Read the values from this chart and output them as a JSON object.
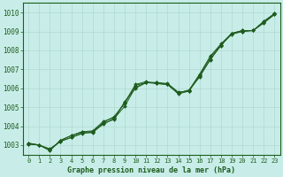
{
  "background_color": "#c8ede8",
  "grid_color": "#b0d8d0",
  "line_color": "#1e5c1e",
  "title": "Graphe pression niveau de la mer (hPa)",
  "xlim": [
    -0.5,
    23.5
  ],
  "ylim": [
    1002.5,
    1010.5
  ],
  "yticks": [
    1003,
    1004,
    1005,
    1006,
    1007,
    1008,
    1009,
    1010
  ],
  "xticks": [
    0,
    1,
    2,
    3,
    4,
    5,
    6,
    7,
    8,
    9,
    10,
    11,
    12,
    13,
    14,
    15,
    16,
    17,
    18,
    19,
    20,
    21,
    22,
    23
  ],
  "series": [
    [
      1003.1,
      1003.0,
      1002.8,
      1003.2,
      1003.4,
      1003.65,
      1003.65,
      1004.15,
      1004.35,
      1005.3,
      1006.0,
      1006.3,
      1006.3,
      1006.25,
      1005.8,
      1005.85,
      1006.65,
      1007.5,
      1008.3,
      1008.85,
      1009.0,
      1009.05,
      1009.5,
      1009.9
    ],
    [
      1003.1,
      1003.0,
      1002.75,
      1003.2,
      1003.4,
      1003.6,
      1003.7,
      1004.1,
      1004.4,
      1005.05,
      1006.05,
      1006.3,
      1006.3,
      1006.2,
      1005.75,
      1005.9,
      1006.6,
      1007.55,
      1008.25,
      1008.9,
      1009.0,
      1009.05,
      1009.45,
      1009.9
    ],
    [
      1003.05,
      1003.0,
      1002.75,
      1003.25,
      1003.5,
      1003.7,
      1003.7,
      1004.2,
      1004.5,
      1005.2,
      1006.15,
      1006.3,
      1006.25,
      1006.2,
      1005.7,
      1005.85,
      1006.7,
      1007.65,
      1008.3,
      1008.9,
      1009.05,
      1009.05,
      1009.5,
      1009.95
    ],
    [
      1003.05,
      1003.0,
      1002.7,
      1003.25,
      1003.5,
      1003.7,
      1003.75,
      1004.25,
      1004.45,
      1005.25,
      1006.2,
      1006.35,
      1006.25,
      1006.2,
      1005.75,
      1005.9,
      1006.75,
      1007.7,
      1008.35,
      1008.9,
      1009.05,
      1009.05,
      1009.55,
      1009.95
    ]
  ]
}
